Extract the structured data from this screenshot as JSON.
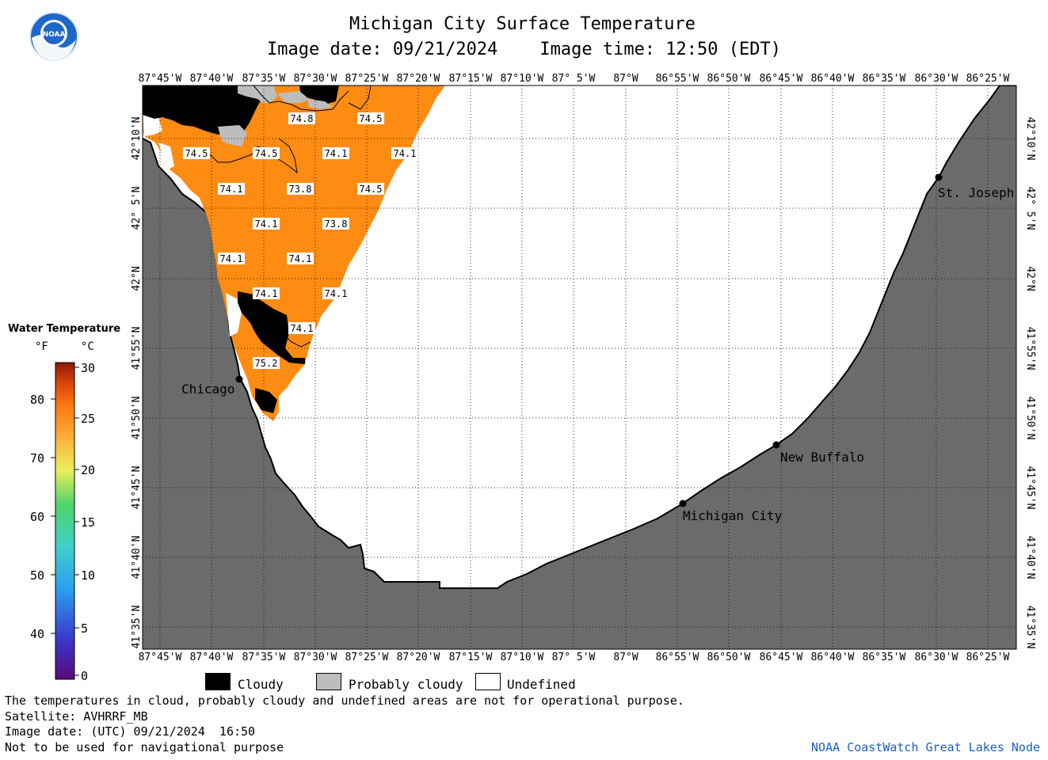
{
  "title": "Michigan City Surface Temperature",
  "image_date_line": "Image date: 09/21/2024    Image time: 12:50 (EDT)",
  "logo_text": "NOAA",
  "lon_labels": [
    "87°45'W",
    "87°40'W",
    "87°35'W",
    "87°30'W",
    "87°25'W",
    "87°20'W",
    "87°15'W",
    "87°10'W",
    "87° 5'W",
    "87°W",
    "86°55'W",
    "86°50'W",
    "86°45'W",
    "86°40'W",
    "86°35'W",
    "86°30'W",
    "86°25'W"
  ],
  "lat_labels": [
    "42°10'N",
    "42° 5'N",
    "42°N",
    "41°55'N",
    "41°50'N",
    "41°45'N",
    "41°40'N",
    "41°35'N"
  ],
  "places": [
    {
      "name": "St. Joseph"
    },
    {
      "name": "Chicago"
    },
    {
      "name": "New Buffalo"
    },
    {
      "name": "Michigan City"
    }
  ],
  "temperatures": [
    "74.8",
    "74.5",
    "74.5",
    "74.5",
    "74.1",
    "74.1",
    "74.1",
    "73.8",
    "74.5",
    "74.1",
    "73.8",
    "74.1",
    "74.1",
    "74.1",
    "74.1",
    "74.1",
    "75.2"
  ],
  "legend": {
    "title": "Water Temperature",
    "unit_f": "°F",
    "unit_c": "°C",
    "f_ticks": [
      "80",
      "70",
      "60",
      "50",
      "40"
    ],
    "c_ticks": [
      "30",
      "25",
      "20",
      "15",
      "10",
      "5",
      "0"
    ]
  },
  "key": {
    "cloudy": "Cloudy",
    "probably_cloudy": "Probably cloudy",
    "undefined": "Undefined"
  },
  "colors": {
    "water_temp": "#ff8c12",
    "land": "#6b6b6b",
    "cloud": "#000000",
    "probably_cloud": "#bdbdbd",
    "credit": "#1b5fc4"
  },
  "footer": [
    "The temperatures in cloud, probably cloudy and undefined areas are not for operational purpose.",
    "Satellite: AVHRRF_MB",
    "Image date: (UTC) 09/21/2024  16:50",
    "Not to be used for navigational purpose"
  ],
  "credit": "NOAA CoastWatch Great Lakes Node"
}
